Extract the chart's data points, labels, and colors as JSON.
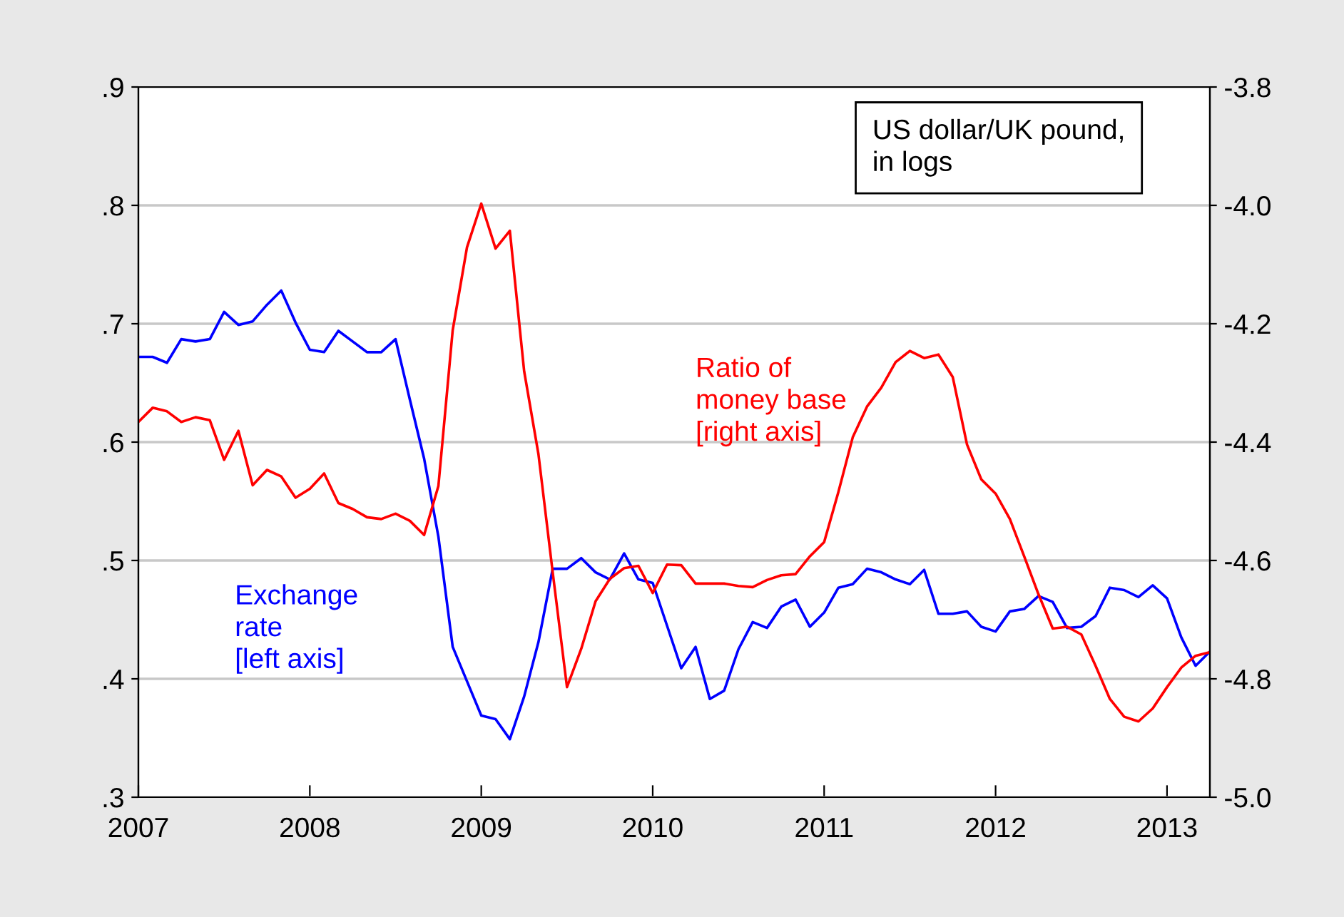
{
  "chart_data": {
    "type": "line",
    "annotations": [
      "US dollar/UK pound,\nin logs"
    ],
    "x": [
      "2007-01",
      "2007-02",
      "2007-03",
      "2007-04",
      "2007-05",
      "2007-06",
      "2007-07",
      "2007-08",
      "2007-09",
      "2007-10",
      "2007-11",
      "2007-12",
      "2008-01",
      "2008-02",
      "2008-03",
      "2008-04",
      "2008-05",
      "2008-06",
      "2008-07",
      "2008-08",
      "2008-09",
      "2008-10",
      "2008-11",
      "2008-12",
      "2009-01",
      "2009-02",
      "2009-03",
      "2009-04",
      "2009-05",
      "2009-06",
      "2009-07",
      "2009-08",
      "2009-09",
      "2009-10",
      "2009-11",
      "2009-12",
      "2010-01",
      "2010-02",
      "2010-03",
      "2010-04",
      "2010-05",
      "2010-06",
      "2010-07",
      "2010-08",
      "2010-09",
      "2010-10",
      "2010-11",
      "2010-12",
      "2011-01",
      "2011-02",
      "2011-03",
      "2011-04",
      "2011-05",
      "2011-06",
      "2011-07",
      "2011-08",
      "2011-09",
      "2011-10",
      "2011-11",
      "2011-12",
      "2012-01",
      "2012-02",
      "2012-03",
      "2012-04",
      "2012-05",
      "2012-06",
      "2012-07",
      "2012-08",
      "2012-09",
      "2012-10",
      "2012-11",
      "2012-12",
      "2013-01",
      "2013-02",
      "2013-03",
      "2013-04"
    ],
    "series": [
      {
        "name": "Exchange\nrate\n[left axis]",
        "color": "#0000ff",
        "axis": "y",
        "values": [
          0.672,
          0.672,
          0.667,
          0.687,
          0.685,
          0.687,
          0.71,
          0.699,
          0.702,
          0.716,
          0.728,
          0.701,
          0.678,
          0.676,
          0.694,
          0.685,
          0.676,
          0.676,
          0.687,
          0.636,
          0.586,
          0.52,
          0.427,
          0.398,
          0.369,
          0.366,
          0.349,
          0.385,
          0.431,
          0.493,
          0.493,
          0.502,
          0.49,
          0.484,
          0.506,
          0.484,
          0.481,
          0.445,
          0.409,
          0.427,
          0.383,
          0.39,
          0.425,
          0.448,
          0.443,
          0.461,
          0.467,
          0.444,
          0.456,
          0.477,
          0.48,
          0.493,
          0.49,
          0.484,
          0.48,
          0.492,
          0.455,
          0.455,
          0.457,
          0.444,
          0.44,
          0.457,
          0.459,
          0.47,
          0.465,
          0.443,
          0.444,
          0.453,
          0.477,
          0.475,
          0.469,
          0.479,
          0.468,
          0.435,
          0.411,
          0.423
        ]
      },
      {
        "name": "Ratio of\nmoney base\n[right axis]",
        "color": "#ff0000",
        "axis": "y2",
        "values": [
          -4.366,
          -4.342,
          -4.348,
          -4.366,
          -4.358,
          -4.363,
          -4.43,
          -4.381,
          -4.473,
          -4.447,
          -4.458,
          -4.494,
          -4.479,
          -4.453,
          -4.503,
          -4.513,
          -4.527,
          -4.53,
          -4.521,
          -4.533,
          -4.557,
          -4.474,
          -4.211,
          -4.071,
          -3.997,
          -4.073,
          -4.043,
          -4.28,
          -4.42,
          -4.62,
          -4.814,
          -4.749,
          -4.669,
          -4.631,
          -4.613,
          -4.609,
          -4.655,
          -4.607,
          -4.608,
          -4.639,
          -4.639,
          -4.639,
          -4.643,
          -4.645,
          -4.633,
          -4.625,
          -4.623,
          -4.593,
          -4.569,
          -4.484,
          -4.392,
          -4.34,
          -4.308,
          -4.265,
          -4.246,
          -4.258,
          -4.252,
          -4.29,
          -4.404,
          -4.463,
          -4.487,
          -4.53,
          -4.593,
          -4.657,
          -4.715,
          -4.712,
          -4.725,
          -4.778,
          -4.834,
          -4.864,
          -4.872,
          -4.85,
          -4.814,
          -4.781,
          -4.761,
          -4.755
        ]
      }
    ],
    "xlim": [
      "2007-01",
      "2013-04"
    ],
    "xticks": [
      {
        "value": "2007",
        "label": "2007"
      },
      {
        "value": "2008",
        "label": "2008"
      },
      {
        "value": "2009",
        "label": "2009"
      },
      {
        "value": "2010",
        "label": "2010"
      },
      {
        "value": "2011",
        "label": "2011"
      },
      {
        "value": "2012",
        "label": "2012"
      },
      {
        "value": "2013",
        "label": "2013"
      }
    ],
    "ylim": [
      0.3,
      0.9
    ],
    "yticks": [
      {
        "value": 0.3,
        "label": ".3"
      },
      {
        "value": 0.4,
        "label": ".4"
      },
      {
        "value": 0.5,
        "label": ".5"
      },
      {
        "value": 0.6,
        "label": ".6"
      },
      {
        "value": 0.7,
        "label": ".7"
      },
      {
        "value": 0.8,
        "label": ".8"
      },
      {
        "value": 0.9,
        "label": ".9"
      }
    ],
    "y2lim": [
      -5.0,
      -3.8
    ],
    "y2ticks": [
      {
        "value": -5.0,
        "label": "-5.0"
      },
      {
        "value": -4.8,
        "label": "-4.8"
      },
      {
        "value": -4.6,
        "label": "-4.6"
      },
      {
        "value": -4.4,
        "label": "-4.4"
      },
      {
        "value": -4.2,
        "label": "-4.2"
      },
      {
        "value": -4.0,
        "label": "-4.0"
      },
      {
        "value": -3.8,
        "label": "-3.8"
      }
    ],
    "grid": "y",
    "legend": false,
    "line_style": "solid",
    "marker": "none"
  }
}
